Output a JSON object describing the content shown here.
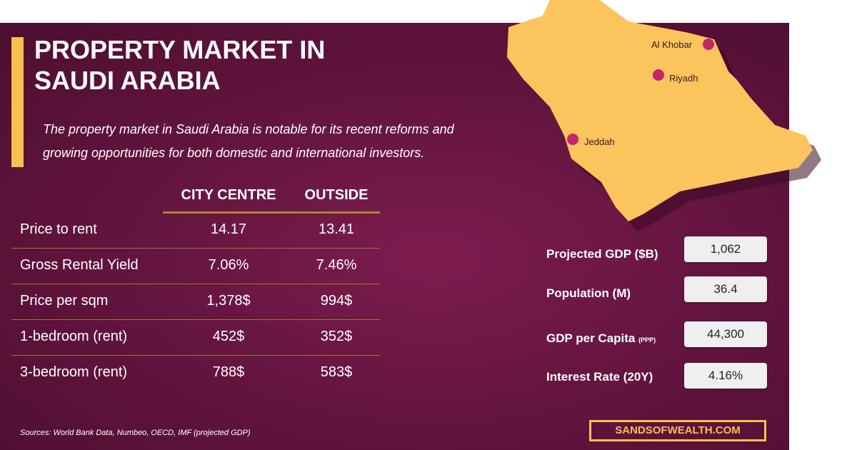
{
  "header": {
    "title": "PROPERTY MARKET IN SAUDI ARABIA",
    "description": "The property market in Saudi Arabia is notable for its recent reforms and growing opportunities for both domestic and international investors."
  },
  "table": {
    "columns": [
      "CITY CENTRE",
      "OUTSIDE"
    ],
    "rows": [
      [
        "Price to rent",
        "14.17",
        "13.41"
      ],
      [
        "Gross Rental Yield",
        "7.06%",
        "7.46%"
      ],
      [
        "Price per sqm",
        "1,378$",
        "994$"
      ],
      [
        "1-bedroom (rent)",
        "452$",
        "352$"
      ],
      [
        "3-bedroom (rent)",
        "788$",
        "583$"
      ]
    ]
  },
  "map": {
    "cities": [
      {
        "name": "Al Khobar"
      },
      {
        "name": "Riyadh"
      },
      {
        "name": "Jeddah"
      }
    ]
  },
  "stats": [
    {
      "label": "Projected GDP ($B)",
      "value": "1,062"
    },
    {
      "label": "Population (M)",
      "value": "36.4"
    },
    {
      "label": "GDP per Capita",
      "qualifier": "(PPP)",
      "value": "44,300"
    },
    {
      "label": "Interest Rate (20Y)",
      "value": "4.16%"
    }
  ],
  "footer": {
    "sources": "Sources:  World Bank Data, Numbeo, OECD, IMF (projected GDP)",
    "brand": "SANDSOFWEALTH.COM"
  }
}
